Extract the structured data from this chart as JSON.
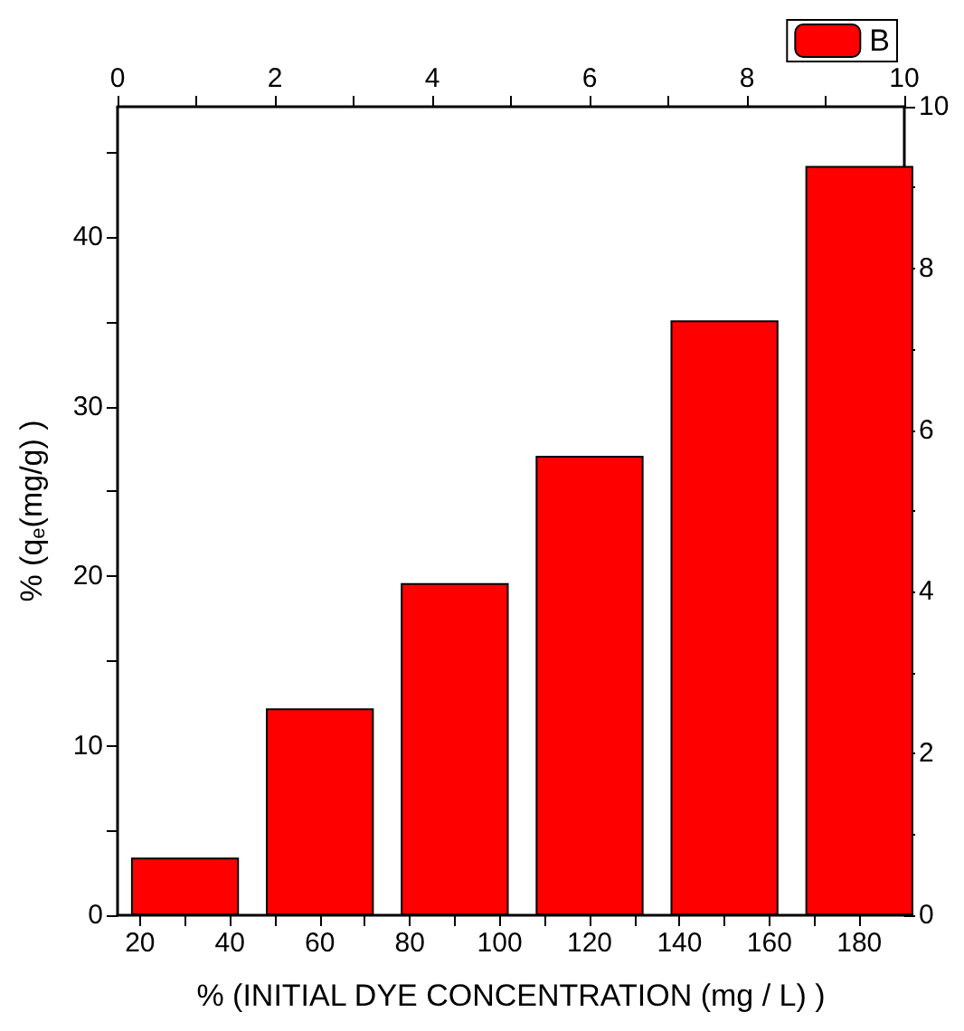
{
  "chart_data": {
    "type": "bar",
    "xlabel": "% (INITIAL DYE CONCENTRATION (mg / L) )",
    "ylabel": "% (q$_{e}$(mg/g) )",
    "x": [
      30,
      60,
      90,
      120,
      150,
      180
    ],
    "series": [
      {
        "name": "B",
        "color": "#ff0000",
        "values": [
          3.4,
          12.2,
          19.6,
          27.1,
          35.1,
          44.2
        ]
      }
    ],
    "xlim": [
      15,
      190
    ],
    "xticks": [
      20,
      {
        "value": 30,
        "label": null
      },
      40,
      {
        "value": 50,
        "label": null
      },
      60,
      {
        "value": 70,
        "label": null
      },
      80,
      {
        "value": 90,
        "label": null
      },
      100,
      {
        "value": 110,
        "label": null
      },
      120,
      {
        "value": 130,
        "label": null
      },
      140,
      {
        "value": 150,
        "label": null
      },
      160,
      {
        "value": 170,
        "label": null
      },
      180
    ],
    "ylim": [
      0,
      47.7
    ],
    "yticks": [
      0,
      {
        "value": 5,
        "label": null
      },
      10,
      {
        "value": 15,
        "label": null
      },
      20,
      {
        "value": 25,
        "label": null
      },
      30,
      {
        "value": 35,
        "label": null
      },
      40,
      {
        "value": 45,
        "label": null
      }
    ],
    "x2lim": [
      0,
      10
    ],
    "x2ticks": [
      0,
      {
        "value": 1,
        "label": null
      },
      2,
      {
        "value": 3,
        "label": null
      },
      4,
      {
        "value": 5,
        "label": null
      },
      6,
      {
        "value": 7,
        "label": null
      },
      8,
      {
        "value": 9,
        "label": null
      },
      10
    ],
    "y2lim": [
      0,
      10
    ],
    "y2ticks": [
      0,
      {
        "value": 1,
        "label": null
      },
      2,
      {
        "value": 3,
        "label": null
      },
      4,
      {
        "value": 5,
        "label": null
      },
      6,
      {
        "value": 7,
        "label": null
      },
      8,
      {
        "value": 9,
        "label": null
      },
      10
    ],
    "legend": "top right",
    "grid": false
  }
}
